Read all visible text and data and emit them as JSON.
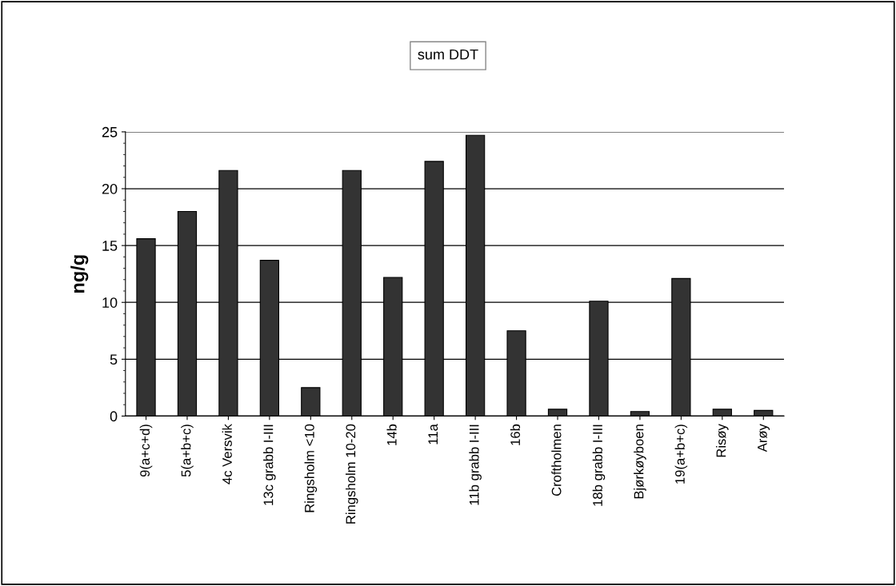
{
  "chart_data": {
    "type": "bar",
    "title": "sum DDT",
    "ylabel": "ng/g",
    "categories": [
      "9(a+c+d)",
      "5(a+b+c)",
      "4c Versvik",
      "13c grabb I-III",
      "Ringsholm <10",
      "Ringsholm 10-20",
      "14b",
      "11a",
      "11b grabb I-III",
      "16b",
      "Croftholmen",
      "18b grabb I-III",
      "Bjørkøyboen",
      "19(a+b+c)",
      "Risøy",
      "Arøy"
    ],
    "values": [
      15.6,
      18.0,
      21.6,
      13.7,
      2.5,
      21.6,
      12.2,
      22.4,
      24.7,
      7.5,
      0.6,
      10.1,
      0.4,
      12.1,
      0.6,
      0.5
    ],
    "color": "#333333",
    "ylim": [
      0,
      25
    ],
    "yticks": [
      0,
      5,
      10,
      15,
      20,
      25
    ],
    "grid": "y",
    "legend": false
  }
}
